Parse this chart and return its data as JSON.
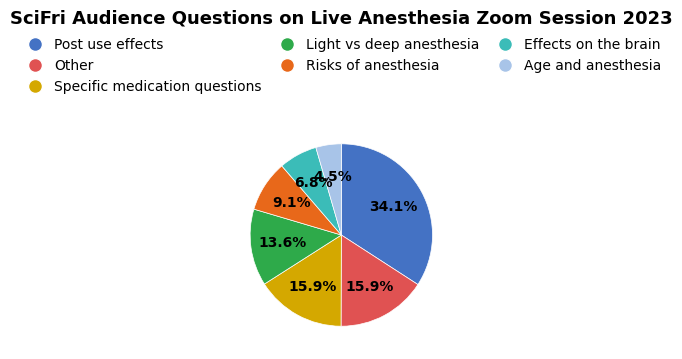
{
  "title": "SciFri Audience Questions on Live Anesthesia Zoom Session 2023",
  "labels": [
    "Post use effects",
    "Other",
    "Specific medication questions",
    "Light vs deep anesthesia",
    "Risks of anesthesia",
    "Effects on the brain",
    "Age and anesthesia"
  ],
  "values": [
    34.1,
    15.9,
    15.9,
    13.6,
    9.1,
    6.8,
    4.5
  ],
  "colors": [
    "#4472C4",
    "#E05252",
    "#D4A800",
    "#2EAA4A",
    "#E8681A",
    "#3BBCB8",
    "#A8C4E8"
  ],
  "startangle": 90,
  "title_fontsize": 13,
  "label_fontsize": 10,
  "legend_fontsize": 10,
  "background_color": "#FFFFFF"
}
